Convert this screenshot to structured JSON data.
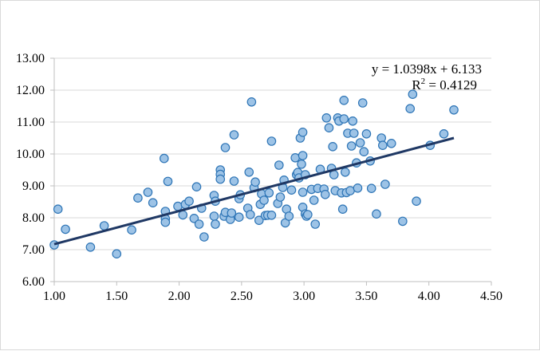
{
  "chart_data": {
    "type": "scatter",
    "title": "",
    "xlabel": "",
    "ylabel": "",
    "xlim": [
      1.0,
      4.5
    ],
    "ylim": [
      6.0,
      13.0
    ],
    "x_ticks": [
      1.0,
      1.5,
      2.0,
      2.5,
      3.0,
      3.5,
      4.0,
      4.5
    ],
    "y_ticks": [
      6.0,
      7.0,
      8.0,
      9.0,
      10.0,
      11.0,
      12.0,
      13.0
    ],
    "x_tick_labels": [
      "1.00",
      "1.50",
      "2.00",
      "2.50",
      "3.00",
      "3.50",
      "4.00",
      "4.50"
    ],
    "y_tick_labels": [
      "6.00",
      "7.00",
      "8.00",
      "9.00",
      "10.00",
      "11.00",
      "12.00",
      "13.00"
    ],
    "grid": "horizontal-major",
    "legend": "none",
    "colors": {
      "marker_fill": "#9dc3e6",
      "marker_stroke": "#2e75b6",
      "trendline": "#1f3864",
      "gridline": "#d9d9d9",
      "axis": "#bfbfbf"
    },
    "trendline": {
      "type": "linear",
      "slope": 1.0398,
      "intercept": 6.133,
      "equation_label": "y = 1.0398x + 6.133",
      "r2_prefix": "R",
      "r2_sup": "2",
      "r2_value": " = 0.4129"
    },
    "points": [
      [
        1.0,
        7.15
      ],
      [
        1.03,
        8.27
      ],
      [
        1.09,
        7.64
      ],
      [
        1.29,
        7.08
      ],
      [
        1.4,
        7.75
      ],
      [
        1.5,
        6.87
      ],
      [
        1.62,
        7.62
      ],
      [
        1.67,
        8.62
      ],
      [
        1.75,
        8.8
      ],
      [
        1.79,
        8.47
      ],
      [
        1.88,
        9.86
      ],
      [
        1.89,
        8.2
      ],
      [
        1.89,
        7.97
      ],
      [
        1.89,
        7.86
      ],
      [
        1.91,
        9.14
      ],
      [
        1.99,
        8.36
      ],
      [
        2.03,
        8.09
      ],
      [
        2.05,
        8.42
      ],
      [
        2.08,
        8.52
      ],
      [
        2.12,
        7.98
      ],
      [
        2.14,
        8.97
      ],
      [
        2.16,
        7.8
      ],
      [
        2.18,
        8.3
      ],
      [
        2.2,
        7.4
      ],
      [
        2.28,
        8.05
      ],
      [
        2.28,
        8.7
      ],
      [
        2.29,
        8.52
      ],
      [
        2.29,
        7.8
      ],
      [
        2.33,
        9.5
      ],
      [
        2.33,
        9.36
      ],
      [
        2.33,
        9.21
      ],
      [
        2.36,
        8.05
      ],
      [
        2.37,
        8.17
      ],
      [
        2.37,
        10.2
      ],
      [
        2.41,
        7.95
      ],
      [
        2.42,
        8.15
      ],
      [
        2.44,
        10.6
      ],
      [
        2.44,
        9.15
      ],
      [
        2.48,
        8.02
      ],
      [
        2.48,
        8.6
      ],
      [
        2.49,
        8.72
      ],
      [
        2.55,
        8.3
      ],
      [
        2.56,
        9.43
      ],
      [
        2.57,
        8.1
      ],
      [
        2.58,
        11.63
      ],
      [
        2.6,
        8.94
      ],
      [
        2.61,
        9.12
      ],
      [
        2.64,
        7.92
      ],
      [
        2.65,
        8.42
      ],
      [
        2.66,
        8.75
      ],
      [
        2.68,
        8.55
      ],
      [
        2.69,
        8.07
      ],
      [
        2.71,
        8.08
      ],
      [
        2.72,
        8.78
      ],
      [
        2.74,
        10.4
      ],
      [
        2.74,
        8.08
      ],
      [
        2.79,
        8.45
      ],
      [
        2.8,
        9.65
      ],
      [
        2.81,
        8.65
      ],
      [
        2.83,
        8.95
      ],
      [
        2.84,
        9.18
      ],
      [
        2.85,
        7.84
      ],
      [
        2.86,
        8.27
      ],
      [
        2.88,
        8.05
      ],
      [
        2.9,
        8.87
      ],
      [
        2.93,
        9.88
      ],
      [
        2.94,
        9.35
      ],
      [
        2.95,
        9.42
      ],
      [
        2.96,
        9.25
      ],
      [
        2.97,
        10.5
      ],
      [
        2.98,
        9.68
      ],
      [
        2.99,
        10.68
      ],
      [
        2.99,
        9.95
      ],
      [
        2.99,
        8.33
      ],
      [
        2.99,
        8.8
      ],
      [
        3.01,
        9.35
      ],
      [
        3.01,
        8.12
      ],
      [
        3.02,
        8.05
      ],
      [
        3.03,
        8.1
      ],
      [
        3.06,
        8.89
      ],
      [
        3.08,
        8.55
      ],
      [
        3.09,
        7.8
      ],
      [
        3.11,
        8.92
      ],
      [
        3.13,
        9.52
      ],
      [
        3.16,
        8.9
      ],
      [
        3.17,
        8.73
      ],
      [
        3.18,
        11.13
      ],
      [
        3.2,
        10.82
      ],
      [
        3.22,
        9.55
      ],
      [
        3.23,
        10.23
      ],
      [
        3.24,
        9.35
      ],
      [
        3.25,
        8.85
      ],
      [
        3.27,
        11.13
      ],
      [
        3.28,
        11.03
      ],
      [
        3.3,
        8.78
      ],
      [
        3.31,
        8.27
      ],
      [
        3.32,
        11.1
      ],
      [
        3.32,
        11.68
      ],
      [
        3.33,
        9.43
      ],
      [
        3.34,
        8.79
      ],
      [
        3.35,
        10.65
      ],
      [
        3.37,
        8.85
      ],
      [
        3.38,
        10.25
      ],
      [
        3.39,
        11.03
      ],
      [
        3.4,
        10.65
      ],
      [
        3.42,
        9.72
      ],
      [
        3.43,
        8.93
      ],
      [
        3.45,
        10.35
      ],
      [
        3.47,
        11.6
      ],
      [
        3.48,
        10.07
      ],
      [
        3.5,
        10.63
      ],
      [
        3.53,
        9.78
      ],
      [
        3.54,
        8.92
      ],
      [
        3.58,
        8.12
      ],
      [
        3.62,
        10.5
      ],
      [
        3.63,
        10.27
      ],
      [
        3.65,
        9.05
      ],
      [
        3.7,
        10.33
      ],
      [
        3.79,
        7.89
      ],
      [
        3.85,
        11.42
      ],
      [
        3.87,
        11.87
      ],
      [
        3.9,
        8.52
      ],
      [
        4.01,
        10.27
      ],
      [
        4.12,
        10.63
      ],
      [
        4.2,
        11.38
      ]
    ]
  }
}
